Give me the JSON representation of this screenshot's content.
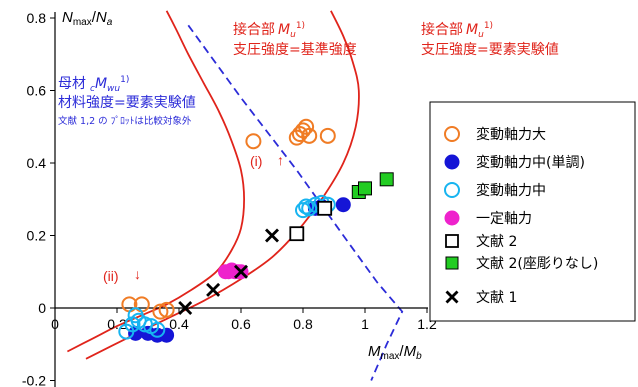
{
  "chart_data": {
    "type": "scatter",
    "x_axis": {
      "label_main": "M",
      "label_sub": "max",
      "label_den": "M",
      "label_den_sub": "b",
      "range": [
        0,
        1.2
      ],
      "ticks": [
        0,
        0.2,
        0.4,
        0.6,
        0.8,
        1,
        1.2
      ],
      "tick_labels": [
        "0",
        "0.2",
        "0.4",
        "0.6",
        "0.8",
        "1",
        "1.2"
      ]
    },
    "y_axis": {
      "label_main": "N",
      "label_sub": "max",
      "label_den": "N",
      "label_den_sub": "a",
      "range": [
        -0.2,
        0.8
      ],
      "ticks": [
        -0.2,
        0,
        0.2,
        0.4,
        0.6,
        0.8
      ],
      "tick_labels": [
        "-0.2",
        "0",
        "0.2",
        "0.4",
        "0.6",
        "0.8"
      ]
    },
    "grid": false,
    "legend_placement": "right",
    "curves": [
      {
        "name": "base_strength_curve",
        "color": "#e0241b",
        "style": "solid",
        "points": [
          [
            0.04,
            -0.12
          ],
          [
            0.12,
            -0.085
          ],
          [
            0.2,
            -0.05
          ],
          [
            0.28,
            -0.02
          ],
          [
            0.36,
            0.01
          ],
          [
            0.44,
            0.05
          ],
          [
            0.52,
            0.1
          ],
          [
            0.57,
            0.16
          ],
          [
            0.6,
            0.22
          ],
          [
            0.61,
            0.3
          ],
          [
            0.6,
            0.38
          ],
          [
            0.57,
            0.46
          ],
          [
            0.53,
            0.54
          ],
          [
            0.48,
            0.62
          ],
          [
            0.43,
            0.7
          ],
          [
            0.39,
            0.77
          ],
          [
            0.36,
            0.82
          ]
        ]
      },
      {
        "name": "element_test_curve",
        "color": "#e0241b",
        "style": "solid",
        "points": [
          [
            0.1,
            -0.14
          ],
          [
            0.24,
            -0.08
          ],
          [
            0.36,
            -0.03
          ],
          [
            0.48,
            0.02
          ],
          [
            0.6,
            0.08
          ],
          [
            0.7,
            0.14
          ],
          [
            0.78,
            0.21
          ],
          [
            0.86,
            0.3
          ],
          [
            0.93,
            0.4
          ],
          [
            0.97,
            0.5
          ],
          [
            0.98,
            0.6
          ],
          [
            0.96,
            0.68
          ],
          [
            0.93,
            0.75
          ],
          [
            0.89,
            0.82
          ]
        ]
      },
      {
        "name": "base_material_curve",
        "color": "#2c2cd8",
        "style": "dashed",
        "points": [
          [
            0.43,
            0.78
          ],
          [
            0.6,
            0.58
          ],
          [
            0.78,
            0.38
          ],
          [
            0.93,
            0.2
          ],
          [
            1.04,
            0.07
          ],
          [
            1.12,
            -0.01
          ],
          [
            1.07,
            -0.1
          ],
          [
            1.02,
            -0.2
          ]
        ]
      }
    ],
    "series": [
      {
        "name": "変動軸力大",
        "marker": "circle-open",
        "color": "#f07c25",
        "points": [
          [
            0.24,
            0.01
          ],
          [
            0.28,
            0.01
          ],
          [
            0.34,
            -0.01
          ],
          [
            0.36,
            -0.005
          ],
          [
            0.64,
            0.46
          ],
          [
            0.78,
            0.47
          ],
          [
            0.8,
            0.49
          ],
          [
            0.81,
            0.5
          ],
          [
            0.82,
            0.475
          ],
          [
            0.79,
            0.48
          ],
          [
            0.88,
            0.475
          ]
        ]
      },
      {
        "name": "変動軸力中(単調)",
        "marker": "circle-filled",
        "color": "#1515d6",
        "points": [
          [
            0.26,
            -0.07
          ],
          [
            0.3,
            -0.07
          ],
          [
            0.33,
            -0.075
          ],
          [
            0.36,
            -0.075
          ],
          [
            0.84,
            0.275
          ],
          [
            0.86,
            0.28
          ],
          [
            0.93,
            0.285
          ]
        ]
      },
      {
        "name": "変動軸力中",
        "marker": "circle-open",
        "color": "#17b4f0",
        "points": [
          [
            0.23,
            -0.065
          ],
          [
            0.25,
            -0.045
          ],
          [
            0.27,
            -0.035
          ],
          [
            0.29,
            -0.045
          ],
          [
            0.31,
            -0.05
          ],
          [
            0.33,
            -0.06
          ],
          [
            0.26,
            -0.02
          ],
          [
            0.8,
            0.27
          ],
          [
            0.81,
            0.28
          ],
          [
            0.82,
            0.275
          ],
          [
            0.84,
            0.285
          ],
          [
            0.86,
            0.29
          ],
          [
            0.88,
            0.285
          ]
        ]
      },
      {
        "name": "一定軸力",
        "marker": "circle-filled",
        "color": "#ee22cc",
        "points": [
          [
            0.55,
            0.1
          ],
          [
            0.56,
            0.1
          ],
          [
            0.57,
            0.105
          ],
          [
            0.58,
            0.1
          ],
          [
            0.59,
            0.1
          ],
          [
            0.6,
            0.1
          ]
        ]
      },
      {
        "name": "文献 2",
        "marker": "square-open",
        "color": "#000000",
        "points": [
          [
            0.78,
            0.205
          ],
          [
            0.87,
            0.275
          ]
        ]
      },
      {
        "name": "文献 2(座彫りなし)",
        "marker": "square-filled",
        "color": "#22cc22",
        "points": [
          [
            0.98,
            0.32
          ],
          [
            1.0,
            0.33
          ],
          [
            1.07,
            0.355
          ]
        ]
      },
      {
        "name": "文献 1",
        "marker": "cross",
        "color": "#000000",
        "points": [
          [
            0.42,
            0.0
          ],
          [
            0.51,
            0.05
          ],
          [
            0.6,
            0.1
          ],
          [
            0.7,
            0.2
          ]
        ]
      }
    ]
  },
  "annotations": {
    "base_joint_label": "接合部",
    "base_joint_mu": "M",
    "base_joint_mu_sub": "u",
    "base_joint_sup": "1)",
    "base_joint_line2": "支圧強度=基準強度",
    "elem_joint_label": "接合部",
    "elem_joint_mu": "M",
    "elem_joint_mu_sub": "u",
    "elem_joint_sup": "1)",
    "elem_joint_line2": "支圧強度=要素実験値",
    "base_material_label": "母材",
    "base_material_c": "c",
    "base_material_m": "M",
    "base_material_sub": "wu",
    "base_material_sup": "1)",
    "base_material_line2": "材料強度=要素実験値",
    "base_material_line3": "文献 1,2 の ﾌﾟﾛｯﾄは比較対象外",
    "label_i": "(i)",
    "label_ii": "(ii)",
    "arrow_up": "↑",
    "arrow_down": "↓"
  },
  "legend": {
    "items": [
      {
        "label": "変動軸力大",
        "marker": "circle-open",
        "color": "#f07c25"
      },
      {
        "label": "変動軸力中(単調)",
        "marker": "circle-filled",
        "color": "#1515d6"
      },
      {
        "label": "変動軸力中",
        "marker": "circle-open",
        "color": "#17b4f0"
      },
      {
        "label": "一定軸力",
        "marker": "circle-filled",
        "color": "#ee22cc"
      },
      {
        "label": "文献 2",
        "marker": "square-open",
        "color": "#000000"
      },
      {
        "label": "文献 2(座彫りなし)",
        "marker": "square-filled",
        "color": "#22cc22"
      },
      {
        "label": "文献 1",
        "marker": "cross",
        "color": "#000000"
      }
    ]
  },
  "colors": {
    "red": "#e0241b",
    "blue": "#2c2cd8"
  }
}
